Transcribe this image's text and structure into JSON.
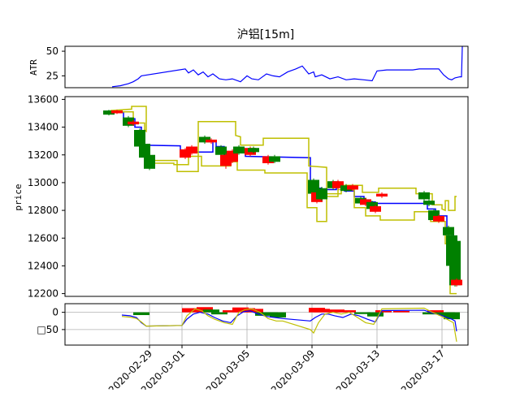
{
  "chart_data": [
    {
      "type": "line",
      "panel": "atr",
      "title": "沪铝[15m]",
      "ylabel": "ATR",
      "ylim": [
        13,
        55
      ],
      "yticks": [
        25,
        50
      ],
      "series": [
        {
          "name": "",
          "color": "#0000ff",
          "x": [
            -3.3,
            -2.8,
            -2.3,
            -2.0,
            -1.7,
            -1.5,
            1.2,
            1.4,
            1.7,
            2.0,
            2.3,
            2.6,
            2.9,
            3.3,
            3.7,
            4.1,
            4.6,
            5.0,
            5.3,
            5.7,
            6.2,
            6.6,
            7.0,
            7.5,
            8.0,
            8.4,
            8.8,
            9.1,
            9.2,
            9.6,
            10.1,
            10.6,
            11.1,
            11.6,
            12.2,
            12.7,
            13.0,
            13.6,
            14.2,
            14.8,
            15.2,
            15.6,
            16.0,
            16.4,
            16.8,
            17.1,
            17.4,
            17.6,
            17.8,
            18.1,
            18.2,
            18.25
          ],
          "y": [
            14,
            15,
            17,
            19,
            22,
            25,
            32,
            28,
            31,
            26,
            29,
            24,
            27,
            22,
            21,
            22,
            19,
            25,
            22,
            21,
            27,
            25,
            24,
            29,
            32,
            35,
            27,
            29,
            24,
            26,
            22,
            24,
            21,
            22,
            21,
            20,
            30,
            31,
            31,
            31,
            31,
            32,
            32,
            32,
            32,
            26,
            22,
            21,
            23,
            24,
            24,
            55
          ]
        }
      ]
    },
    {
      "type": "candlestick",
      "panel": "price",
      "ylabel": "price",
      "ylim": [
        12180,
        13620
      ],
      "yticks": [
        12200,
        12400,
        12600,
        12800,
        13000,
        13200,
        13400,
        13600
      ],
      "candles": [
        {
          "x": -3.5,
          "o": 13520,
          "c": 13490,
          "h": 13525,
          "l": 13485,
          "col": "g"
        },
        {
          "x": -3.0,
          "o": 13500,
          "c": 13520,
          "h": 13525,
          "l": 13495,
          "col": "r"
        },
        {
          "x": -2.3,
          "o": 13470,
          "c": 13410,
          "h": 13480,
          "l": 13400,
          "col": "g"
        },
        {
          "x": -2.0,
          "o": 13420,
          "c": 13440,
          "h": 13450,
          "l": 13410,
          "col": "r"
        },
        {
          "x": -1.6,
          "o": 13380,
          "c": 13260,
          "h": 13390,
          "l": 13250,
          "col": "g"
        },
        {
          "x": -1.3,
          "o": 13280,
          "c": 13180,
          "h": 13300,
          "l": 13170,
          "col": "g"
        },
        {
          "x": -1.0,
          "o": 13200,
          "c": 13100,
          "h": 13210,
          "l": 13090,
          "col": "g"
        },
        {
          "x": 1.2,
          "o": 13180,
          "c": 13240,
          "h": 13250,
          "l": 13170,
          "col": "r"
        },
        {
          "x": 1.6,
          "o": 13210,
          "c": 13260,
          "h": 13270,
          "l": 13200,
          "col": "r"
        },
        {
          "x": 2.4,
          "o": 13330,
          "c": 13290,
          "h": 13340,
          "l": 13280,
          "col": "g"
        },
        {
          "x": 2.8,
          "o": 13290,
          "c": 13310,
          "h": 13320,
          "l": 13280,
          "col": "r"
        },
        {
          "x": 3.4,
          "o": 13260,
          "c": 13200,
          "h": 13270,
          "l": 13190,
          "col": "g"
        },
        {
          "x": 3.7,
          "o": 13120,
          "c": 13200,
          "h": 13210,
          "l": 13100,
          "col": "r"
        },
        {
          "x": 4.1,
          "o": 13150,
          "c": 13230,
          "h": 13240,
          "l": 13140,
          "col": "r"
        },
        {
          "x": 4.5,
          "o": 13260,
          "c": 13210,
          "h": 13270,
          "l": 13200,
          "col": "g"
        },
        {
          "x": 5.2,
          "o": 13200,
          "c": 13250,
          "h": 13260,
          "l": 13190,
          "col": "r"
        },
        {
          "x": 5.4,
          "o": 13250,
          "c": 13220,
          "h": 13260,
          "l": 13210,
          "col": "g"
        },
        {
          "x": 6.3,
          "o": 13140,
          "c": 13190,
          "h": 13200,
          "l": 13130,
          "col": "r"
        },
        {
          "x": 6.7,
          "o": 13190,
          "c": 13150,
          "h": 13200,
          "l": 13140,
          "col": "g"
        },
        {
          "x": 9.1,
          "o": 13020,
          "c": 12920,
          "h": 13030,
          "l": 12910,
          "col": "g"
        },
        {
          "x": 9.3,
          "o": 12930,
          "c": 12860,
          "h": 12940,
          "l": 12850,
          "col": "r"
        },
        {
          "x": 9.6,
          "o": 12960,
          "c": 12880,
          "h": 12970,
          "l": 12870,
          "col": "g"
        },
        {
          "x": 10.3,
          "o": 13010,
          "c": 12960,
          "h": 13020,
          "l": 12950,
          "col": "g"
        },
        {
          "x": 10.6,
          "o": 12960,
          "c": 13010,
          "h": 13020,
          "l": 12950,
          "col": "r"
        },
        {
          "x": 11.1,
          "o": 12980,
          "c": 12940,
          "h": 12990,
          "l": 12930,
          "col": "g"
        },
        {
          "x": 11.5,
          "o": 12950,
          "c": 12980,
          "h": 12990,
          "l": 12940,
          "col": "r"
        },
        {
          "x": 12.0,
          "o": 12890,
          "c": 12850,
          "h": 12900,
          "l": 12840,
          "col": "g"
        },
        {
          "x": 12.3,
          "o": 12840,
          "c": 12880,
          "h": 12890,
          "l": 12830,
          "col": "r"
        },
        {
          "x": 12.7,
          "o": 12860,
          "c": 12810,
          "h": 12870,
          "l": 12800,
          "col": "g"
        },
        {
          "x": 12.9,
          "o": 12790,
          "c": 12830,
          "h": 12840,
          "l": 12780,
          "col": "r"
        },
        {
          "x": 13.3,
          "o": 12900,
          "c": 12920,
          "h": 12930,
          "l": 12890,
          "col": "r"
        },
        {
          "x": 15.9,
          "o": 12930,
          "c": 12880,
          "h": 12940,
          "l": 12870,
          "col": "g"
        },
        {
          "x": 16.2,
          "o": 12870,
          "c": 12840,
          "h": 12880,
          "l": 12830,
          "col": "g"
        },
        {
          "x": 16.5,
          "o": 12800,
          "c": 12730,
          "h": 12810,
          "l": 12720,
          "col": "g"
        },
        {
          "x": 16.8,
          "o": 12720,
          "c": 12760,
          "h": 12770,
          "l": 12710,
          "col": "r"
        },
        {
          "x": 17.4,
          "o": 12680,
          "c": 12620,
          "h": 12690,
          "l": 12610,
          "col": "g"
        },
        {
          "x": 17.6,
          "o": 12620,
          "c": 12400,
          "h": 12630,
          "l": 12380,
          "col": "g"
        },
        {
          "x": 17.8,
          "o": 12580,
          "c": 12260,
          "h": 12600,
          "l": 12250,
          "col": "g"
        },
        {
          "x": 17.9,
          "o": 12260,
          "c": 12300,
          "h": 12310,
          "l": 12250,
          "col": "r"
        }
      ],
      "lines": [
        {
          "name": "",
          "color": "#0000ff",
          "x": [
            -3.6,
            -2.6,
            -2.6,
            -1.9,
            -1.9,
            -1.5,
            -1.5,
            0.9,
            0.9,
            2.9,
            2.9,
            3.1,
            3.1,
            3.6,
            3.6,
            4.3,
            4.3,
            4.9,
            4.9,
            8.9,
            8.9,
            9.6,
            9.6,
            10.5,
            10.5,
            11.0,
            11.0,
            11.6,
            11.6,
            12.2,
            12.2,
            12.9,
            12.9,
            13.4,
            13.4,
            16.1,
            16.1,
            16.6,
            16.6,
            17.3,
            17.3,
            17.7,
            17.7,
            17.9
          ],
          "y": [
            13510,
            13510,
            13460,
            13460,
            13400,
            13400,
            13270,
            13265,
            13220,
            13220,
            13300,
            13300,
            13260,
            13260,
            13200,
            13200,
            13230,
            13230,
            13190,
            13180,
            12960,
            12960,
            12950,
            12950,
            12970,
            12970,
            12940,
            12940,
            12900,
            12900,
            12860,
            12860,
            12850,
            12850,
            12850,
            12850,
            12810,
            12810,
            12760,
            12760,
            12660,
            12660,
            12580,
            12580
          ]
        },
        {
          "name": "",
          "color": "#bfbf00",
          "x": [
            -3.4,
            -2.1,
            -2.1,
            -1.2,
            -1.2,
            -1.3,
            -1.3,
            0.7,
            0.7,
            2.0,
            2.0,
            4.3,
            4.3,
            4.6,
            4.6,
            6.0,
            6.0,
            8.8,
            8.8,
            9.9,
            9.9,
            10.8,
            10.8,
            12.1,
            12.1,
            13.1,
            13.1,
            15.4,
            15.4,
            16.4,
            16.4,
            17.0,
            17.0,
            17.2,
            17.2,
            17.4,
            17.4,
            17.8,
            17.8,
            17.9
          ],
          "y": [
            13520,
            13530,
            13550,
            13550,
            13370,
            13380,
            13160,
            13160,
            13080,
            13080,
            13440,
            13440,
            13340,
            13330,
            13270,
            13270,
            13320,
            13320,
            13120,
            13110,
            12920,
            12920,
            12980,
            12980,
            12930,
            12930,
            12960,
            12960,
            12920,
            12920,
            12840,
            12840,
            12810,
            12800,
            12870,
            12870,
            12800,
            12800,
            12900,
            12900
          ]
        },
        {
          "name": "",
          "color": "#bfbf00",
          "x": [
            -3.4,
            -2.0,
            -2.0,
            -1.3,
            -1.3,
            0.5,
            0.5,
            1.4,
            1.4,
            2.2,
            2.2,
            4.0,
            4.0,
            4.4,
            4.4,
            6.1,
            6.1,
            8.7,
            8.7,
            9.3,
            9.3,
            9.9,
            9.9,
            10.6,
            10.6,
            11.6,
            11.6,
            12.3,
            12.3,
            13.2,
            13.2,
            15.3,
            15.3,
            16.3,
            16.3,
            17.0,
            17.0,
            17.2,
            17.2,
            17.5,
            17.5,
            17.9
          ],
          "y": [
            13510,
            13510,
            13430,
            13430,
            13140,
            13140,
            13130,
            13130,
            13190,
            13190,
            13120,
            13120,
            13150,
            13150,
            13090,
            13090,
            13070,
            13070,
            12820,
            12820,
            12720,
            12720,
            12900,
            12900,
            12950,
            12950,
            12820,
            12820,
            12760,
            12760,
            12730,
            12730,
            12790,
            12790,
            12720,
            12720,
            12720,
            12720,
            12560,
            12560,
            12200,
            12200
          ]
        }
      ]
    },
    {
      "type": "bar+line",
      "panel": "signal",
      "ylim": [
        -95,
        25
      ],
      "yticks": [
        0,
        -50
      ],
      "ytick_labels": [
        "0",
        "□50"
      ],
      "xticks": [
        -1.0,
        1.0,
        5.0,
        9.0,
        13.0,
        17.0
      ],
      "xtick_labels": [
        "2020-02-29",
        "2020-03-01",
        "2020-03-05",
        "2020-03-09",
        "2020-03-13",
        "2020-03-17"
      ],
      "xlim": [
        -6.2,
        18.6
      ],
      "bars": [
        {
          "x": -1.5,
          "v": -8,
          "col": "g"
        },
        {
          "x": 1.5,
          "v": 12,
          "col": "r"
        },
        {
          "x": 2.4,
          "v": 15,
          "col": "r"
        },
        {
          "x": 2.8,
          "v": 8,
          "col": "g"
        },
        {
          "x": 3.3,
          "v": -6,
          "col": "g"
        },
        {
          "x": 4.0,
          "v": 6,
          "col": "r"
        },
        {
          "x": 4.6,
          "v": 14,
          "col": "r"
        },
        {
          "x": 5.0,
          "v": 12,
          "col": "r"
        },
        {
          "x": 5.5,
          "v": 10,
          "col": "r"
        },
        {
          "x": 6.0,
          "v": -10,
          "col": "g"
        },
        {
          "x": 6.4,
          "v": -5,
          "col": "g"
        },
        {
          "x": 6.9,
          "v": -15,
          "col": "g"
        },
        {
          "x": 9.3,
          "v": 13,
          "col": "r"
        },
        {
          "x": 9.6,
          "v": 10,
          "col": "r"
        },
        {
          "x": 10.5,
          "v": 8,
          "col": "r"
        },
        {
          "x": 11.2,
          "v": 6,
          "col": "r"
        },
        {
          "x": 12.1,
          "v": -5,
          "col": "g"
        },
        {
          "x": 12.9,
          "v": -12,
          "col": "g"
        },
        {
          "x": 13.4,
          "v": 6,
          "col": "r"
        },
        {
          "x": 14.5,
          "v": 4,
          "col": "r"
        },
        {
          "x": 16.3,
          "v": -6,
          "col": "g"
        },
        {
          "x": 16.6,
          "v": 6,
          "col": "r"
        },
        {
          "x": 17.3,
          "v": -10,
          "col": "g"
        },
        {
          "x": 17.6,
          "v": -20,
          "col": "g"
        }
      ],
      "lines": [
        {
          "name": "",
          "color": "#0000ff",
          "x": [
            -2.7,
            -2.2,
            -1.8,
            -1.5,
            -1.2,
            1.0,
            1.3,
            1.7,
            2.1,
            2.6,
            3.0,
            3.5,
            4.0,
            4.4,
            4.8,
            5.2,
            5.7,
            6.2,
            6.7,
            7.2,
            8.9,
            9.2,
            9.6,
            10.0,
            10.4,
            10.9,
            11.4,
            11.9,
            12.4,
            12.9,
            13.3,
            15.9,
            16.4,
            16.9,
            17.3,
            17.6,
            17.8,
            17.9
          ],
          "y": [
            -8,
            -10,
            -15,
            -30,
            -40,
            -38,
            -20,
            -5,
            0,
            -5,
            -15,
            -25,
            -30,
            -10,
            2,
            4,
            -5,
            -12,
            -15,
            -18,
            -25,
            -15,
            -5,
            -5,
            -10,
            -15,
            -5,
            -10,
            -20,
            -28,
            5,
            6,
            -2,
            -8,
            -15,
            -20,
            -25,
            -55
          ]
        },
        {
          "name": "",
          "color": "#bfbf00",
          "x": [
            -2.7,
            -2.2,
            -1.8,
            -1.5,
            -1.2,
            1.0,
            1.3,
            1.8,
            2.2,
            2.6,
            3.0,
            3.6,
            4.1,
            4.5,
            4.9,
            5.3,
            5.8,
            6.3,
            6.8,
            7.2,
            8.9,
            9.1,
            9.4,
            9.8,
            10.3,
            10.8,
            11.3,
            11.8,
            12.3,
            12.8,
            13.3,
            15.9,
            16.4,
            16.9,
            17.3,
            17.7,
            17.9
          ],
          "y": [
            -12,
            -14,
            -18,
            -28,
            -40,
            -38,
            -10,
            10,
            5,
            -10,
            -20,
            -30,
            -35,
            0,
            8,
            10,
            0,
            -18,
            -25,
            -25,
            -50,
            -60,
            -30,
            -5,
            0,
            -5,
            0,
            -15,
            -30,
            -35,
            10,
            12,
            0,
            -10,
            -20,
            -30,
            -85
          ]
        }
      ]
    }
  ]
}
